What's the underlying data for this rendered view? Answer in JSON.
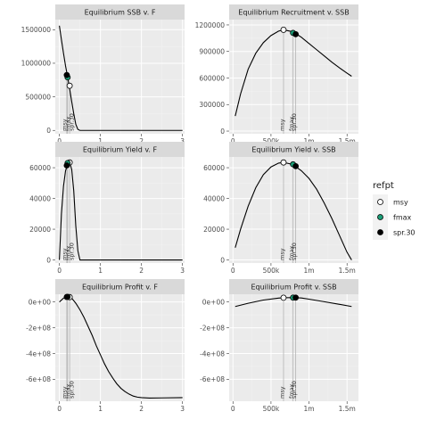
{
  "chart_data": [
    {
      "type": "line",
      "title": "Equilibrium SSB v. F",
      "xlim": [
        -0.1,
        3.05
      ],
      "ylim": [
        -50000,
        1650000
      ],
      "xticks": [
        0,
        1,
        2,
        3
      ],
      "xtick_labels": [
        "0",
        "1",
        "2",
        "3"
      ],
      "yticks": [
        0,
        500000,
        1000000,
        1500000
      ],
      "ytick_labels": [
        "0",
        "500000",
        "1000000",
        "1500000"
      ],
      "grid": true,
      "series": [
        {
          "values": [
            [
              0,
              1560000
            ],
            [
              0.05,
              1350000
            ],
            [
              0.1,
              1150000
            ],
            [
              0.15,
              960000
            ],
            [
              0.2,
              800000
            ],
            [
              0.25,
              620000
            ],
            [
              0.3,
              430000
            ],
            [
              0.35,
              250000
            ],
            [
              0.4,
              90000
            ],
            [
              0.45,
              15000
            ],
            [
              0.5,
              0
            ],
            [
              0.8,
              0
            ],
            [
              1.5,
              0
            ],
            [
              2.2,
              0
            ],
            [
              3.0,
              0
            ]
          ]
        }
      ],
      "refpts": [
        {
          "name": "msy",
          "x": 0.25,
          "y": 665000
        },
        {
          "name": "fmax",
          "x": 0.2,
          "y": 790000
        },
        {
          "name": "spr.30",
          "x": 0.18,
          "y": 825000
        }
      ],
      "ref_labels": [
        "msy",
        "fmax",
        "spr.30"
      ],
      "ref_lines": "vertical"
    },
    {
      "type": "line",
      "title": "Equilibrium Recruitment v. SSB",
      "xlim": [
        -50000,
        1650000
      ],
      "ylim": [
        -30000,
        1260000
      ],
      "xticks": [
        0,
        500000,
        1000000,
        1500000
      ],
      "xtick_labels": [
        "0",
        "500k",
        "1m",
        "1.5m"
      ],
      "yticks": [
        0,
        300000,
        600000,
        900000,
        1200000
      ],
      "ytick_labels": [
        "0",
        "300000",
        "600000",
        "900000",
        "1200000"
      ],
      "grid": true,
      "series": [
        {
          "values": [
            [
              30000,
              170000
            ],
            [
              100000,
              420000
            ],
            [
              200000,
              700000
            ],
            [
              300000,
              880000
            ],
            [
              400000,
              1000000
            ],
            [
              500000,
              1080000
            ],
            [
              600000,
              1130000
            ],
            [
              665000,
              1145000
            ],
            [
              750000,
              1130000
            ],
            [
              800000,
              1115000
            ],
            [
              830000,
              1100000
            ],
            [
              900000,
              1060000
            ],
            [
              1000000,
              990000
            ],
            [
              1100000,
              920000
            ],
            [
              1200000,
              850000
            ],
            [
              1300000,
              780000
            ],
            [
              1400000,
              715000
            ],
            [
              1500000,
              655000
            ],
            [
              1560000,
              620000
            ]
          ]
        }
      ],
      "refpts": [
        {
          "name": "msy",
          "x": 665000,
          "y": 1145000
        },
        {
          "name": "fmax",
          "x": 790000,
          "y": 1110000
        },
        {
          "name": "spr.30",
          "x": 825000,
          "y": 1095000
        }
      ],
      "ref_labels": [
        "msy",
        "fmax",
        "spr.30"
      ],
      "ref_lines": "vertical"
    },
    {
      "type": "line",
      "title": "Equilibrium Yield v. F",
      "xlim": [
        -0.1,
        3.05
      ],
      "ylim": [
        -2000,
        67000
      ],
      "xticks": [
        0,
        1,
        2,
        3
      ],
      "xtick_labels": [
        "0",
        "1",
        "2",
        "3"
      ],
      "yticks": [
        0,
        20000,
        40000,
        60000
      ],
      "ytick_labels": [
        "0",
        "20000",
        "40000",
        "60000"
      ],
      "grid": true,
      "series": [
        {
          "values": [
            [
              0,
              0
            ],
            [
              0.05,
              30000
            ],
            [
              0.1,
              48000
            ],
            [
              0.15,
              58000
            ],
            [
              0.2,
              62000
            ],
            [
              0.25,
              63400
            ],
            [
              0.3,
              59000
            ],
            [
              0.35,
              45000
            ],
            [
              0.4,
              22000
            ],
            [
              0.45,
              6000
            ],
            [
              0.5,
              0
            ],
            [
              1.0,
              0
            ],
            [
              2.0,
              0
            ],
            [
              3.0,
              0
            ]
          ]
        }
      ],
      "refpts": [
        {
          "name": "msy",
          "x": 0.25,
          "y": 63400
        },
        {
          "name": "fmax",
          "x": 0.2,
          "y": 63000
        },
        {
          "name": "spr.30",
          "x": 0.18,
          "y": 61500
        }
      ],
      "ref_labels": [
        "msy",
        "fmax",
        "spr.30"
      ],
      "ref_lines": "vertical"
    },
    {
      "type": "line",
      "title": "Equilibrium Yield v. SSB",
      "xlim": [
        -50000,
        1650000
      ],
      "ylim": [
        -2000,
        67000
      ],
      "xticks": [
        0,
        500000,
        1000000,
        1500000
      ],
      "xtick_labels": [
        "0",
        "500k",
        "1m",
        "1.5m"
      ],
      "yticks": [
        0,
        20000,
        40000,
        60000
      ],
      "ytick_labels": [
        "0",
        "20000",
        "40000",
        "60000"
      ],
      "grid": true,
      "series": [
        {
          "values": [
            [
              30000,
              8000
            ],
            [
              100000,
              20000
            ],
            [
              200000,
              35000
            ],
            [
              300000,
              47000
            ],
            [
              400000,
              55500
            ],
            [
              500000,
              60500
            ],
            [
              600000,
              63000
            ],
            [
              665000,
              63400
            ],
            [
              750000,
              62500
            ],
            [
              800000,
              61500
            ],
            [
              830000,
              60500
            ],
            [
              900000,
              58000
            ],
            [
              1000000,
              53000
            ],
            [
              1100000,
              46000
            ],
            [
              1200000,
              37000
            ],
            [
              1300000,
              27000
            ],
            [
              1400000,
              16000
            ],
            [
              1500000,
              5000
            ],
            [
              1560000,
              0
            ]
          ]
        }
      ],
      "refpts": [
        {
          "name": "msy",
          "x": 665000,
          "y": 63400
        },
        {
          "name": "fmax",
          "x": 790000,
          "y": 62200
        },
        {
          "name": "spr.30",
          "x": 825000,
          "y": 61000
        }
      ],
      "ref_labels": [
        "msy",
        "fmax",
        "spr.30"
      ],
      "ref_lines": "vertical"
    },
    {
      "type": "line",
      "title": "Equilibrium Profit v. F",
      "xlim": [
        -0.1,
        3.05
      ],
      "ylim": [
        -770000000,
        60000000
      ],
      "xticks": [
        0,
        1,
        2,
        3
      ],
      "xtick_labels": [
        "0",
        "1",
        "2",
        "3"
      ],
      "yticks": [
        0,
        -200000000,
        -400000000,
        -600000000
      ],
      "ytick_labels": [
        "0e+00",
        "-2e+08",
        "-4e+08",
        "-6e+08"
      ],
      "grid": true,
      "series": [
        {
          "values": [
            [
              0,
              0
            ],
            [
              0.1,
              30000000
            ],
            [
              0.2,
              40000000
            ],
            [
              0.3,
              30000000
            ],
            [
              0.4,
              -10000000
            ],
            [
              0.5,
              -60000000
            ],
            [
              0.6,
              -120000000
            ],
            [
              0.7,
              -190000000
            ],
            [
              0.8,
              -260000000
            ],
            [
              0.9,
              -340000000
            ],
            [
              1.0,
              -410000000
            ],
            [
              1.1,
              -480000000
            ],
            [
              1.2,
              -540000000
            ],
            [
              1.3,
              -590000000
            ],
            [
              1.4,
              -635000000
            ],
            [
              1.5,
              -670000000
            ],
            [
              1.6,
              -695000000
            ],
            [
              1.7,
              -715000000
            ],
            [
              1.8,
              -730000000
            ],
            [
              1.9,
              -738000000
            ],
            [
              2.0,
              -742000000
            ],
            [
              2.2,
              -745000000
            ],
            [
              2.5,
              -744000000
            ],
            [
              3.0,
              -742000000
            ]
          ]
        }
      ],
      "refpts": [
        {
          "name": "msy",
          "x": 0.25,
          "y": 38000000
        },
        {
          "name": "fmax",
          "x": 0.2,
          "y": 40000000
        },
        {
          "name": "spr.30",
          "x": 0.18,
          "y": 39000000
        }
      ],
      "ref_labels": [
        "msy",
        "fmax",
        "spr.30"
      ],
      "ref_lines": "vertical"
    },
    {
      "type": "line",
      "title": "Equilibrium Profit v. SSB",
      "xlim": [
        -50000,
        1650000
      ],
      "ylim": [
        -770000000,
        60000000
      ],
      "xticks": [
        0,
        500000,
        1000000,
        1500000
      ],
      "xtick_labels": [
        "0",
        "500k",
        "1m",
        "1.5m"
      ],
      "yticks": [
        0,
        -200000000,
        -400000000,
        -600000000
      ],
      "ytick_labels": [
        "0e+00",
        "-2e+08",
        "-4e+08",
        "-6e+08"
      ],
      "grid": true,
      "series": [
        {
          "values": [
            [
              30000,
              -35000000
            ],
            [
              200000,
              -10000000
            ],
            [
              400000,
              15000000
            ],
            [
              600000,
              30000000
            ],
            [
              665000,
              33000000
            ],
            [
              800000,
              34000000
            ],
            [
              900000,
              31000000
            ],
            [
              1000000,
              22000000
            ],
            [
              1200000,
              2000000
            ],
            [
              1400000,
              -18000000
            ],
            [
              1560000,
              -35000000
            ]
          ]
        }
      ],
      "refpts": [
        {
          "name": "msy",
          "x": 665000,
          "y": 33000000
        },
        {
          "name": "fmax",
          "x": 790000,
          "y": 34000000
        },
        {
          "name": "spr.30",
          "x": 825000,
          "y": 34000000
        }
      ],
      "ref_labels": [
        "msy",
        "fmax",
        "spr.30"
      ],
      "ref_lines": "vertical"
    }
  ],
  "legend": {
    "title": "refpt",
    "placement": "right",
    "items": [
      {
        "label": "msy",
        "color": "#ffffff"
      },
      {
        "label": "fmax",
        "color": "#1b9e77"
      },
      {
        "label": "spr.30",
        "color": "#000000"
      }
    ]
  },
  "colors": {
    "panel_bg": "#ebebeb",
    "strip_bg": "#d9d9d9",
    "grid_major": "#ffffff",
    "grid_minor": "#f3f3f3",
    "line": "#000000",
    "ref_line": "#b3b3b3"
  }
}
